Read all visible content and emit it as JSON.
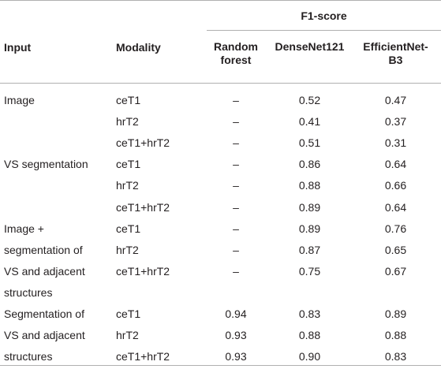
{
  "header": {
    "group": "F1-score",
    "input": "Input",
    "modality": "Modality",
    "rf_line1": "Random",
    "rf_line2": "forest",
    "densenet": "DenseNet121",
    "eff_line1": "EfficientNet-",
    "eff_line2": "B3"
  },
  "groups": [
    {
      "input_lines": [
        "Image"
      ],
      "rows": [
        {
          "modality": "ceT1",
          "rf": "–",
          "dn": "0.52",
          "ef": "0.47"
        },
        {
          "modality": "hrT2",
          "rf": "–",
          "dn": "0.41",
          "ef": "0.37"
        },
        {
          "modality": "ceT1+hrT2",
          "rf": "–",
          "dn": "0.51",
          "ef": "0.31"
        }
      ]
    },
    {
      "input_lines": [
        "VS segmentation"
      ],
      "rows": [
        {
          "modality": "ceT1",
          "rf": "–",
          "dn": "0.86",
          "ef": "0.64"
        },
        {
          "modality": "hrT2",
          "rf": "–",
          "dn": "0.88",
          "ef": "0.66"
        },
        {
          "modality": "ceT1+hrT2",
          "rf": "–",
          "dn": "0.89",
          "ef": "0.64"
        }
      ]
    },
    {
      "input_lines": [
        "Image +",
        "segmentation of",
        "VS and adjacent",
        "structures"
      ],
      "rows": [
        {
          "modality": "ceT1",
          "rf": "–",
          "dn": "0.89",
          "ef": "0.76"
        },
        {
          "modality": "hrT2",
          "rf": "–",
          "dn": "0.87",
          "ef": "0.65"
        },
        {
          "modality": "ceT1+hrT2",
          "rf": "–",
          "dn": "0.75",
          "ef": "0.67"
        }
      ]
    },
    {
      "input_lines": [
        "Segmentation of",
        "VS and adjacent",
        "structures"
      ],
      "rows": [
        {
          "modality": "ceT1",
          "rf": "0.94",
          "dn": "0.83",
          "ef": "0.89"
        },
        {
          "modality": "hrT2",
          "rf": "0.93",
          "dn": "0.88",
          "ef": "0.88"
        },
        {
          "modality": "ceT1+hrT2",
          "rf": "0.93",
          "dn": "0.90",
          "ef": "0.83"
        }
      ]
    }
  ]
}
